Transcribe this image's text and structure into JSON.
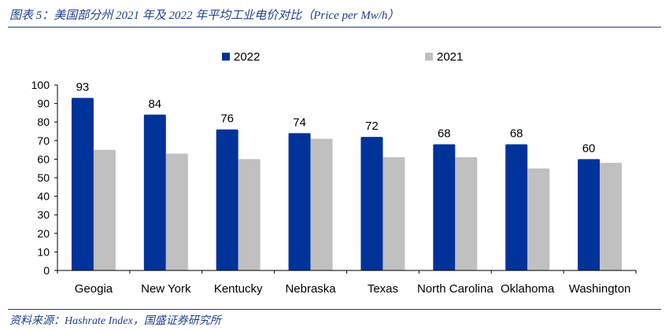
{
  "title": "图表 5：美国部分州 2021 年及 2022 年平均工业电价对比（Price per Mw/h）",
  "source": "资料来源：Hashrate Index，国盛证券研究所",
  "chart_data": {
    "type": "bar",
    "categories": [
      "Geogia",
      "New York",
      "Kentucky",
      "Nebraska",
      "Texas",
      "North Carolina",
      "Oklahoma",
      "Washington"
    ],
    "series": [
      {
        "name": "2022",
        "color": "#003399",
        "values": [
          93,
          84,
          76,
          74,
          72,
          68,
          68,
          60
        ],
        "data_labels": true
      },
      {
        "name": "2021",
        "color": "#c0c0c0",
        "values": [
          65,
          63,
          60,
          71,
          61,
          61,
          55,
          58
        ],
        "data_labels": false
      }
    ],
    "ylim": [
      0,
      100
    ],
    "yticks": [
      0,
      10,
      20,
      30,
      40,
      50,
      60,
      70,
      80,
      90,
      100
    ],
    "legend": "top",
    "grid": false
  }
}
